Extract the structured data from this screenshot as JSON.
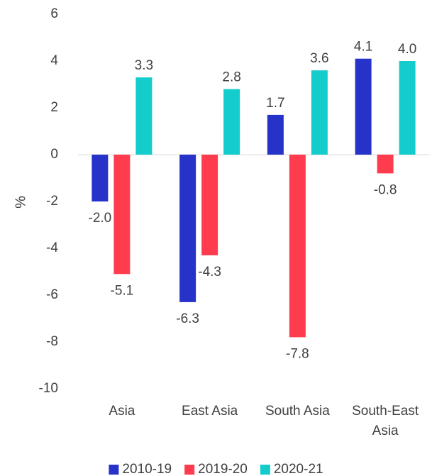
{
  "chart_data": {
    "type": "bar",
    "title": "",
    "xlabel": "",
    "ylabel": "%",
    "ylim": [
      -10,
      6
    ],
    "yticks": [
      "6",
      "4",
      "2",
      "0",
      "-2",
      "-4",
      "-6",
      "-8",
      "-10"
    ],
    "ytick_values": [
      6,
      4,
      2,
      0,
      -2,
      -4,
      -6,
      -8,
      -10
    ],
    "categories": [
      [
        "Asia"
      ],
      [
        "East Asia"
      ],
      [
        "South Asia"
      ],
      [
        "South-East",
        "Asia"
      ]
    ],
    "series": [
      {
        "name": "2010-19",
        "color": "#2632C8",
        "values": [
          -2.0,
          -6.3,
          1.7,
          4.1
        ],
        "labels": [
          "-2.0",
          "-6.3",
          "1.7",
          "4.1"
        ]
      },
      {
        "name": "2019-20",
        "color": "#FF3B4E",
        "values": [
          -5.1,
          -4.3,
          -7.8,
          -0.8
        ],
        "labels": [
          "-5.1",
          "-4.3",
          "-7.8",
          "-0.8"
        ]
      },
      {
        "name": "2020-21",
        "color": "#14CCCC",
        "values": [
          3.3,
          2.8,
          3.6,
          4.0
        ],
        "labels": [
          "3.3",
          "2.8",
          "3.6",
          "4.0"
        ]
      }
    ],
    "grid": false,
    "legend": "bottom",
    "zero_line_color": "#D9D9D9"
  }
}
